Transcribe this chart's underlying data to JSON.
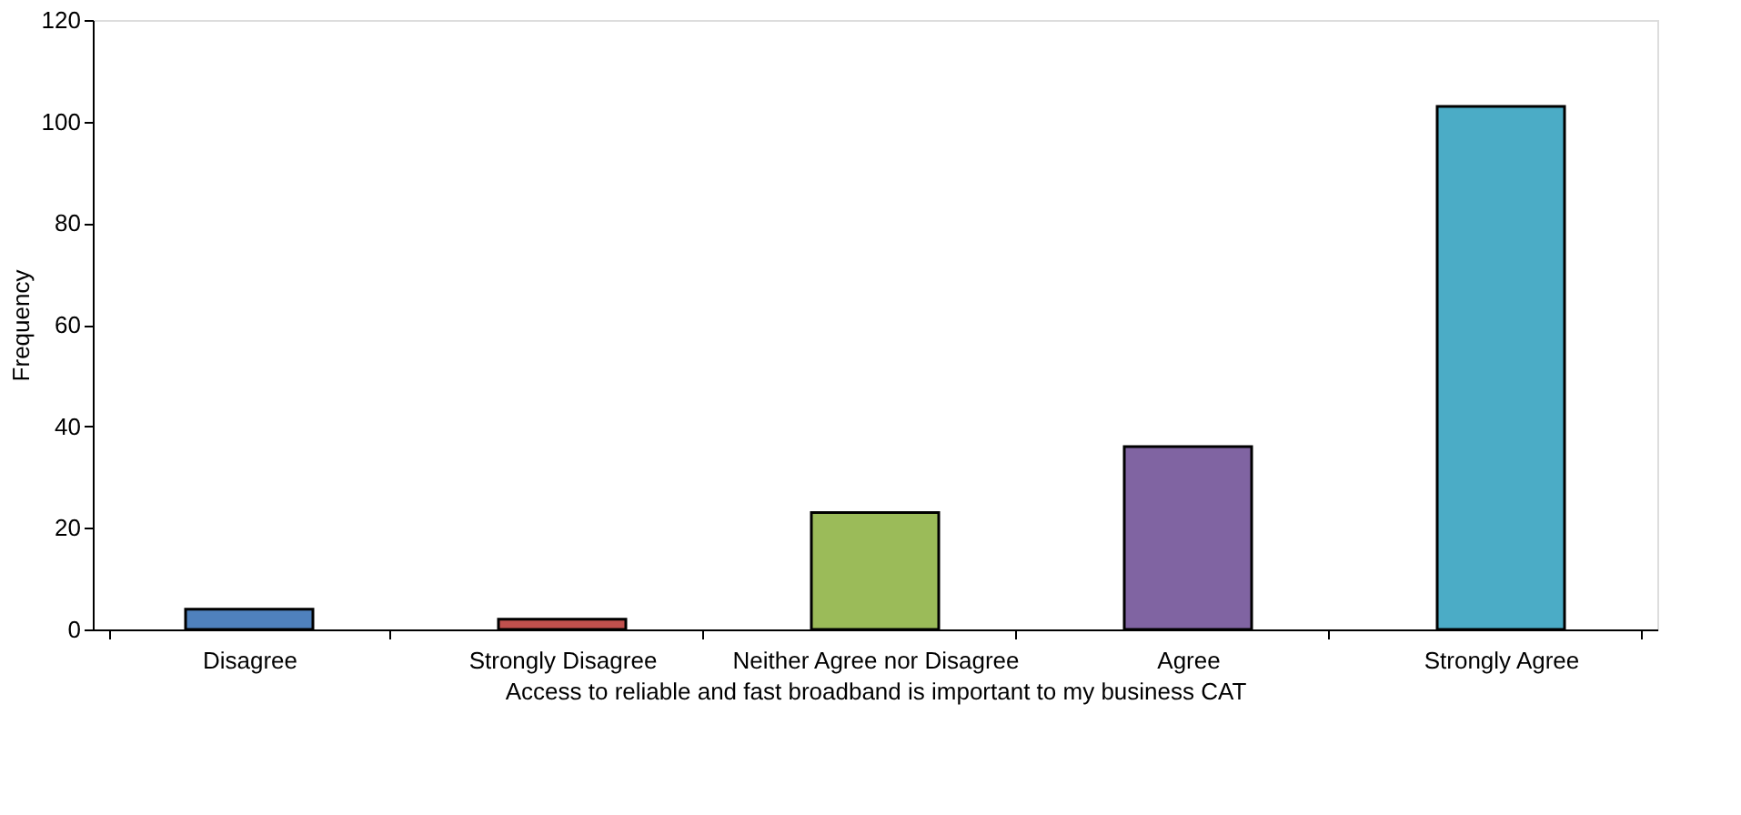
{
  "chart_data": {
    "type": "bar",
    "xlabel": "Access to reliable and fast broadband is important to my business CAT",
    "ylabel": "Frequency",
    "categories": [
      "Disagree",
      "Strongly Disagree",
      "Neither Agree nor Disagree",
      "Agree",
      "Strongly Agree"
    ],
    "values": [
      4,
      2,
      23,
      36,
      103
    ],
    "colors": [
      "#4f81bd",
      "#c0504d",
      "#9bbb59",
      "#8064a2",
      "#4bacc6"
    ],
    "ylim": [
      0,
      120
    ],
    "yticks": [
      0,
      20,
      40,
      60,
      80,
      100,
      120
    ],
    "grid": false,
    "legend": false
  }
}
